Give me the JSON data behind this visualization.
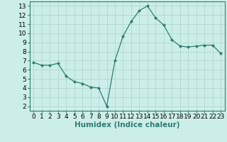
{
  "x": [
    0,
    1,
    2,
    3,
    4,
    5,
    6,
    7,
    8,
    9,
    10,
    11,
    12,
    13,
    14,
    15,
    16,
    17,
    18,
    19,
    20,
    21,
    22,
    23
  ],
  "y": [
    6.8,
    6.5,
    6.5,
    6.7,
    5.3,
    4.7,
    4.5,
    4.1,
    4.0,
    2.0,
    7.0,
    9.7,
    11.3,
    12.5,
    13.0,
    11.7,
    10.9,
    9.3,
    8.6,
    8.5,
    8.6,
    8.7,
    8.7,
    7.8
  ],
  "line_color": "#2d7d6f",
  "marker": "D",
  "marker_size": 2,
  "bg_color": "#cceee8",
  "grid_color": "#b0d8d0",
  "xlabel": "Humidex (Indice chaleur)",
  "xlim": [
    -0.5,
    23.5
  ],
  "ylim": [
    1.5,
    13.5
  ],
  "yticks": [
    2,
    3,
    4,
    5,
    6,
    7,
    8,
    9,
    10,
    11,
    12,
    13
  ],
  "xticks": [
    0,
    1,
    2,
    3,
    4,
    5,
    6,
    7,
    8,
    9,
    10,
    11,
    12,
    13,
    14,
    15,
    16,
    17,
    18,
    19,
    20,
    21,
    22,
    23
  ],
  "tick_fontsize": 6.5,
  "label_fontsize": 7.5
}
